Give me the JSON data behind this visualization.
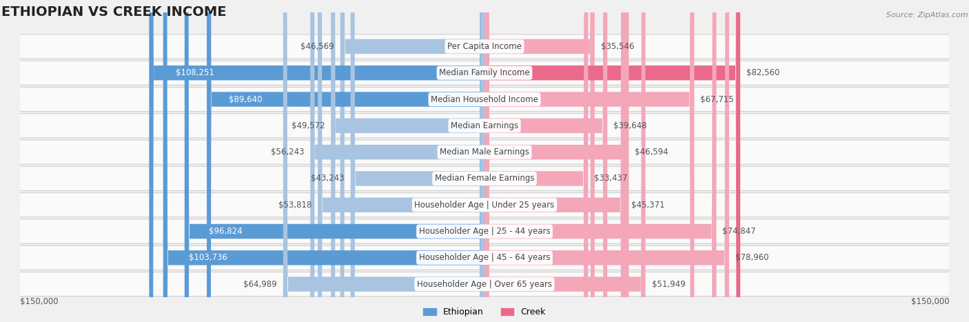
{
  "title": "ETHIOPIAN VS CREEK INCOME",
  "source": "Source: ZipAtlas.com",
  "categories": [
    "Per Capita Income",
    "Median Family Income",
    "Median Household Income",
    "Median Earnings",
    "Median Male Earnings",
    "Median Female Earnings",
    "Householder Age | Under 25 years",
    "Householder Age | 25 - 44 years",
    "Householder Age | 45 - 64 years",
    "Householder Age | Over 65 years"
  ],
  "ethiopian_values": [
    46569,
    108251,
    89640,
    49572,
    56243,
    43243,
    53818,
    96824,
    103736,
    64989
  ],
  "creek_values": [
    35546,
    82560,
    67715,
    39648,
    46594,
    33437,
    45371,
    74847,
    78960,
    51949
  ],
  "ethiopian_labels": [
    "$46,569",
    "$108,251",
    "$89,640",
    "$49,572",
    "$56,243",
    "$43,243",
    "$53,818",
    "$96,824",
    "$103,736",
    "$64,989"
  ],
  "creek_labels": [
    "$35,546",
    "$82,560",
    "$67,715",
    "$39,648",
    "$46,594",
    "$33,437",
    "$45,371",
    "$74,847",
    "$78,960",
    "$51,949"
  ],
  "max_value": 150000,
  "ethiopian_color_light": "#a8c4e0",
  "ethiopian_color_dark": "#5b9bd5",
  "creek_color_light": "#f4a7b9",
  "creek_color_dark": "#e96a8a",
  "background_color": "#f0f0f0",
  "row_bg_color": "#fafafa",
  "row_border_color": "#d0d0d0",
  "title_fontsize": 14,
  "label_fontsize": 8.5,
  "category_fontsize": 8.5,
  "axis_label_fontsize": 8.5,
  "legend_fontsize": 9,
  "xlabel_left": "$150,000",
  "xlabel_right": "$150,000",
  "threshold_white_text": 20000
}
